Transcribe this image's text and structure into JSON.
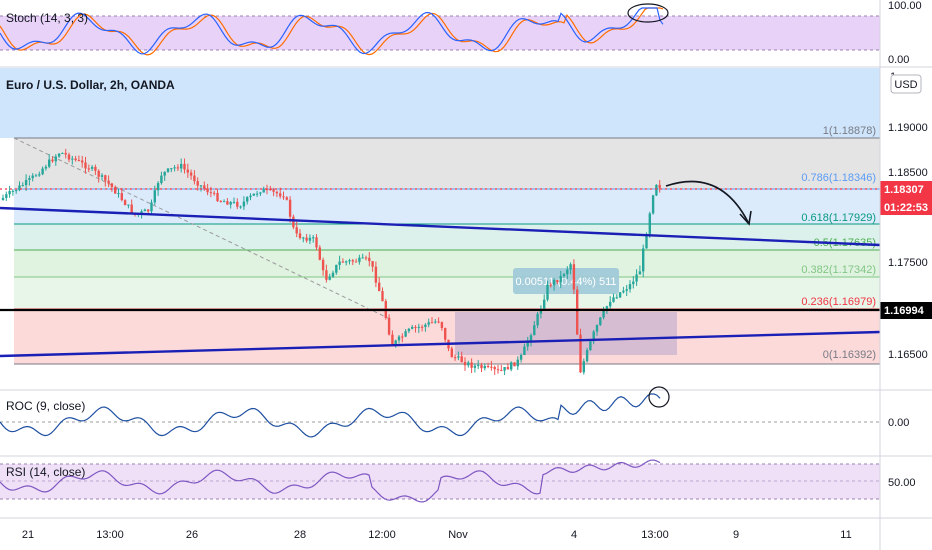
{
  "chart": {
    "title": "Euro / U.S. Dollar, 2h, OANDA",
    "currency": "USD",
    "current_price": "1.18307",
    "countdown": "01:22:53",
    "level_marker": "1.16994",
    "price_ticks": [
      "1.19000",
      "1.18500",
      "1.17500",
      "1.16500"
    ],
    "price_tick_partial": "1.",
    "measure_label": "0.00511 (0.44%) 511",
    "fib_levels": [
      {
        "label": "1(1.18878)",
        "value": 1.18878,
        "color": "#787b86"
      },
      {
        "label": "0.786(1.18346)",
        "value": 1.18346,
        "color": "#5b9cf6"
      },
      {
        "label": "0.618(1.17929)",
        "value": 1.17929,
        "color": "#089981"
      },
      {
        "label": "0.5(1.17635)",
        "value": 1.17635,
        "color": "#4caf50"
      },
      {
        "label": "0.382(1.17342)",
        "value": 1.17342,
        "color": "#81c784"
      },
      {
        "label": "0.236(1.16979)",
        "value": 1.16979,
        "color": "#f23645"
      },
      {
        "label": "0(1.16392)",
        "value": 1.16392,
        "color": "#787b86"
      }
    ]
  },
  "stoch": {
    "title": "Stoch (14, 3, 3)",
    "ticks": [
      "100.00",
      "0.00"
    ]
  },
  "roc": {
    "title": "ROC (9, close)",
    "tick": "0.00"
  },
  "rsi": {
    "title": "RSI (14, close)",
    "tick": "50.00"
  },
  "time_axis": [
    "21",
    "13:00",
    "26",
    "28",
    "12:00",
    "Nov",
    "4",
    "13:00",
    "9",
    "11"
  ],
  "colors": {
    "up": "#26a69a",
    "down": "#ef5350",
    "trendline": "#1a1fb5",
    "price_badge": "#f23645",
    "level_badge": "#000000",
    "stoch_k": "#2962ff",
    "stoch_d": "#ff6d00",
    "indicator_line": "#1e4fa0",
    "rsi_line": "#7e57c2",
    "band": "#e1bee7"
  }
}
